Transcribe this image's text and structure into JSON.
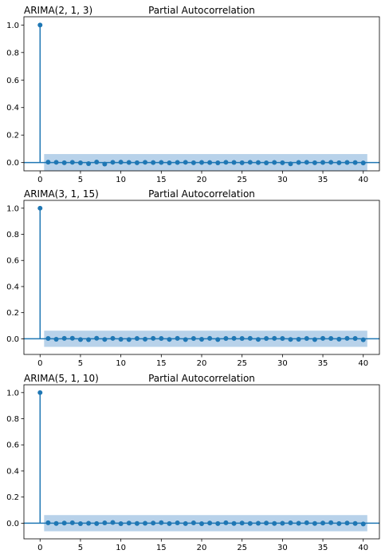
{
  "chart_data": [
    {
      "type": "stem",
      "left_title": "ARIMA(2, 1, 3)",
      "title": "Partial Autocorrelation",
      "xlim": [
        -2,
        42
      ],
      "ylim": [
        -0.06,
        1.06
      ],
      "xticks": [
        0,
        5,
        10,
        15,
        20,
        25,
        30,
        35,
        40
      ],
      "yticks": [
        0.0,
        0.2,
        0.4,
        0.6,
        0.8,
        1.0
      ],
      "ytick_labels": [
        "0.0",
        "0.2",
        "0.4",
        "0.6",
        "0.8",
        "1.0"
      ],
      "confidence_band": [
        -0.062,
        0.062
      ],
      "band_from_lag": 0.5,
      "lags": [
        0,
        1,
        2,
        3,
        4,
        5,
        6,
        7,
        8,
        9,
        10,
        11,
        12,
        13,
        14,
        15,
        16,
        17,
        18,
        19,
        20,
        21,
        22,
        23,
        24,
        25,
        26,
        27,
        28,
        29,
        30,
        31,
        32,
        33,
        34,
        35,
        36,
        37,
        38,
        39,
        40
      ],
      "values": [
        1.0,
        0.003,
        0.002,
        -0.001,
        0.002,
        -0.002,
        -0.008,
        0.004,
        -0.011,
        0.002,
        0.003,
        0.001,
        -0.001,
        0.002,
        0.0,
        0.001,
        -0.002,
        0.001,
        0.002,
        -0.001,
        0.001,
        0.0,
        -0.002,
        0.002,
        0.001,
        -0.001,
        0.002,
        0.0,
        -0.002,
        0.001,
        -0.001,
        -0.009,
        0.001,
        0.002,
        -0.001,
        0.001,
        0.002,
        -0.001,
        0.001,
        0.0,
        -0.003
      ],
      "color": "#1f77b4",
      "band_color": "#b8d2ea"
    },
    {
      "type": "stem",
      "left_title": "ARIMA(3, 1, 15)",
      "title": "Partial Autocorrelation",
      "xlim": [
        -2,
        42
      ],
      "ylim": [
        -0.12,
        1.06
      ],
      "xticks": [
        0,
        5,
        10,
        15,
        20,
        25,
        30,
        35,
        40
      ],
      "yticks": [
        0.0,
        0.2,
        0.4,
        0.6,
        0.8,
        1.0
      ],
      "ytick_labels": [
        "0.0",
        "0.2",
        "0.4",
        "0.6",
        "0.8",
        "1.0"
      ],
      "confidence_band": [
        -0.062,
        0.062
      ],
      "band_from_lag": 0.5,
      "lags": [
        0,
        1,
        2,
        3,
        4,
        5,
        6,
        7,
        8,
        9,
        10,
        11,
        12,
        13,
        14,
        15,
        16,
        17,
        18,
        19,
        20,
        21,
        22,
        23,
        24,
        25,
        26,
        27,
        28,
        29,
        30,
        31,
        32,
        33,
        34,
        35,
        36,
        37,
        38,
        39,
        40
      ],
      "values": [
        1.0,
        0.002,
        -0.004,
        0.003,
        0.004,
        -0.006,
        -0.007,
        0.004,
        -0.005,
        0.003,
        -0.004,
        -0.006,
        0.002,
        -0.003,
        0.003,
        0.002,
        -0.005,
        0.003,
        -0.006,
        0.002,
        -0.004,
        0.003,
        -0.006,
        0.002,
        0.003,
        0.002,
        0.003,
        -0.005,
        0.002,
        0.003,
        0.002,
        -0.005,
        -0.004,
        0.002,
        -0.006,
        0.003,
        0.002,
        -0.003,
        0.003,
        0.002,
        -0.008
      ],
      "color": "#1f77b4",
      "band_color": "#b8d2ea"
    },
    {
      "type": "stem",
      "left_title": "ARIMA(5, 1, 10)",
      "title": "Partial Autocorrelation",
      "xlim": [
        -2,
        42
      ],
      "ylim": [
        -0.12,
        1.06
      ],
      "xticks": [
        0,
        5,
        10,
        15,
        20,
        25,
        30,
        35,
        40
      ],
      "yticks": [
        0.0,
        0.2,
        0.4,
        0.6,
        0.8,
        1.0
      ],
      "ytick_labels": [
        "0.0",
        "0.2",
        "0.4",
        "0.6",
        "0.8",
        "1.0"
      ],
      "confidence_band": [
        -0.062,
        0.062
      ],
      "band_from_lag": 0.5,
      "lags": [
        0,
        1,
        2,
        3,
        4,
        5,
        6,
        7,
        8,
        9,
        10,
        11,
        12,
        13,
        14,
        15,
        16,
        17,
        18,
        19,
        20,
        21,
        22,
        23,
        24,
        25,
        26,
        27,
        28,
        29,
        30,
        31,
        32,
        33,
        34,
        35,
        36,
        37,
        38,
        39,
        40
      ],
      "values": [
        1.0,
        0.003,
        -0.002,
        0.001,
        0.003,
        -0.004,
        -0.001,
        -0.003,
        0.002,
        0.005,
        -0.004,
        0.001,
        -0.002,
        -0.001,
        0.001,
        0.004,
        -0.003,
        0.002,
        -0.003,
        0.002,
        -0.004,
        0.001,
        -0.003,
        0.003,
        -0.002,
        0.001,
        -0.002,
        -0.001,
        0.001,
        -0.002,
        -0.001,
        0.002,
        -0.001,
        0.003,
        -0.002,
        0.001,
        0.004,
        -0.003,
        0.001,
        -0.002,
        -0.006
      ],
      "color": "#1f77b4",
      "band_color": "#b8d2ea"
    }
  ]
}
